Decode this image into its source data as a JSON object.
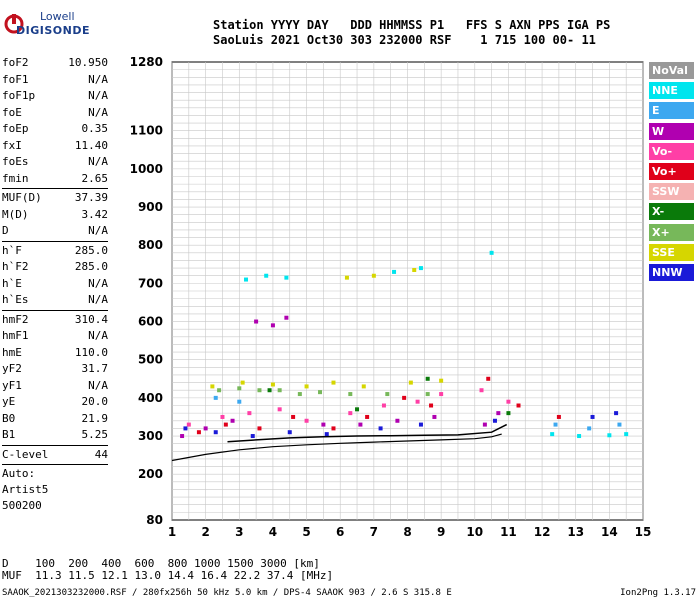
{
  "logo": {
    "line1": "Lowell",
    "line2": "DIGISONDE"
  },
  "header": {
    "line1": "Station YYYY DAY   DDD HHMMSS P1   FFS S AXN PPS IGA PS",
    "line2": "SaoLuis 2021 Oct30 303 232000 RSF    1 715 100 00- 11"
  },
  "params": [
    {
      "k": "foF2",
      "v": "10.950"
    },
    {
      "k": "foF1",
      "v": "N/A"
    },
    {
      "k": "foF1p",
      "v": "N/A"
    },
    {
      "k": "foE",
      "v": "N/A"
    },
    {
      "k": "foEp",
      "v": "0.35"
    },
    {
      "k": "fxI",
      "v": "11.40"
    },
    {
      "k": "foEs",
      "v": "N/A"
    },
    {
      "k": "fmin",
      "v": "2.65"
    },
    {
      "k": "MUF(D)",
      "v": "37.39"
    },
    {
      "k": "M(D)",
      "v": "3.42"
    },
    {
      "k": "D",
      "v": "N/A"
    },
    {
      "k": "h`F",
      "v": "285.0"
    },
    {
      "k": "h`F2",
      "v": "285.0"
    },
    {
      "k": "h`E",
      "v": "N/A"
    },
    {
      "k": "h`Es",
      "v": "N/A"
    },
    {
      "k": "hmF2",
      "v": "310.4"
    },
    {
      "k": "hmF1",
      "v": "N/A"
    },
    {
      "k": "hmE",
      "v": "110.0"
    },
    {
      "k": "yF2",
      "v": "31.7"
    },
    {
      "k": "yF1",
      "v": "N/A"
    },
    {
      "k": "yE",
      "v": "20.0"
    },
    {
      "k": "B0",
      "v": "21.9"
    },
    {
      "k": "B1",
      "v": "5.25"
    },
    {
      "k": "C-level",
      "v": "44"
    }
  ],
  "auto": [
    "Auto:",
    "Artist5",
    "500200"
  ],
  "legend": [
    {
      "label": "NoVal",
      "color": "#999999"
    },
    {
      "label": "NNE",
      "color": "#00e5ee"
    },
    {
      "label": "E",
      "color": "#3ca8f0"
    },
    {
      "label": "W",
      "color": "#b000b0"
    },
    {
      "label": "Vo-",
      "color": "#ff3fa6"
    },
    {
      "label": "Vo+",
      "color": "#e0001a"
    },
    {
      "label": "SSW",
      "color": "#f5b2b2"
    },
    {
      "label": "X-",
      "color": "#0a7a0a"
    },
    {
      "label": "X+",
      "color": "#77b85a"
    },
    {
      "label": "SSE",
      "color": "#d6d600"
    },
    {
      "label": "NNW",
      "color": "#1a1ad8"
    }
  ],
  "bottom": {
    "line1": "D    100  200  400  600  800 1000 1500 3000 [km]",
    "line2": "MUF  11.3 11.5 12.1 13.0 14.4 16.4 22.2 37.4 [MHz]"
  },
  "footer_left": "SAAOK_2021303232000.RSF / 280fx256h 50 kHz 5.0 km / DPS-4 SAAOK 903 / 2.6 S 315.8 E",
  "footer_right": "Ion2Png 1.3.17",
  "chart_data": {
    "type": "scatter",
    "xlim": [
      1,
      15
    ],
    "ylim": [
      80,
      1280
    ],
    "x_ticks": [
      "1",
      "2",
      "3",
      "4",
      "5",
      "6",
      "7",
      "8",
      "9",
      "10",
      "11",
      "12",
      "13",
      "14",
      "15"
    ],
    "y_ticks": [
      "80",
      "200",
      "300",
      "400",
      "500",
      "600",
      "700",
      "800",
      "900",
      "1000",
      "1100",
      "1280"
    ],
    "grid": true,
    "profile_curve": {
      "x": [
        1.0,
        2.0,
        3.0,
        4.0,
        5.0,
        6.0,
        7.0,
        8.0,
        9.0,
        10.0,
        10.5,
        10.8
      ],
      "y": [
        236,
        252,
        264,
        272,
        277,
        281,
        284,
        287,
        290,
        293,
        298,
        305
      ]
    },
    "trace_curve": {
      "x": [
        2.65,
        3.5,
        4.5,
        5.5,
        6.5,
        7.5,
        8.5,
        9.5,
        10.5,
        10.95
      ],
      "y": [
        285,
        290,
        295,
        298,
        300,
        301,
        302,
        303,
        310,
        330
      ]
    },
    "series": [
      {
        "code": "NNE",
        "values": [
          [
            3.2,
            710
          ],
          [
            3.8,
            720
          ],
          [
            4.4,
            715
          ],
          [
            7.6,
            730
          ],
          [
            8.4,
            740
          ],
          [
            10.5,
            780
          ],
          [
            12.3,
            305
          ],
          [
            13.1,
            300
          ],
          [
            14.0,
            302
          ],
          [
            14.5,
            305
          ]
        ]
      },
      {
        "code": "W",
        "values": [
          [
            1.3,
            300
          ],
          [
            2.0,
            320
          ],
          [
            2.8,
            340
          ],
          [
            3.5,
            600
          ],
          [
            4.0,
            590
          ],
          [
            4.4,
            610
          ],
          [
            5.5,
            330
          ],
          [
            6.6,
            330
          ],
          [
            7.7,
            340
          ],
          [
            8.8,
            350
          ],
          [
            10.3,
            330
          ],
          [
            10.7,
            360
          ]
        ]
      },
      {
        "code": "Vo-",
        "values": [
          [
            1.5,
            330
          ],
          [
            2.5,
            350
          ],
          [
            3.3,
            360
          ],
          [
            4.2,
            370
          ],
          [
            5.0,
            340
          ],
          [
            6.3,
            360
          ],
          [
            7.3,
            380
          ],
          [
            8.3,
            390
          ],
          [
            9.0,
            410
          ],
          [
            10.2,
            420
          ],
          [
            11.0,
            390
          ]
        ]
      },
      {
        "code": "Vo+",
        "values": [
          [
            1.8,
            310
          ],
          [
            2.6,
            330
          ],
          [
            3.6,
            320
          ],
          [
            4.6,
            350
          ],
          [
            5.8,
            320
          ],
          [
            6.8,
            350
          ],
          [
            7.9,
            400
          ],
          [
            8.7,
            380
          ],
          [
            10.4,
            450
          ],
          [
            11.3,
            380
          ],
          [
            12.5,
            350
          ]
        ]
      },
      {
        "code": "X+",
        "values": [
          [
            2.4,
            420
          ],
          [
            3.0,
            425
          ],
          [
            3.6,
            420
          ],
          [
            4.2,
            420
          ],
          [
            4.8,
            410
          ],
          [
            5.4,
            415
          ],
          [
            6.3,
            410
          ],
          [
            7.4,
            410
          ],
          [
            8.6,
            410
          ]
        ]
      },
      {
        "code": "SSE",
        "values": [
          [
            2.2,
            430
          ],
          [
            3.1,
            440
          ],
          [
            4.0,
            435
          ],
          [
            5.0,
            430
          ],
          [
            5.8,
            440
          ],
          [
            6.7,
            430
          ],
          [
            8.1,
            440
          ],
          [
            9.0,
            445
          ],
          [
            6.2,
            715
          ],
          [
            7.0,
            720
          ],
          [
            8.2,
            735
          ]
        ]
      },
      {
        "code": "NNW",
        "values": [
          [
            1.4,
            320
          ],
          [
            2.3,
            310
          ],
          [
            3.4,
            300
          ],
          [
            4.5,
            310
          ],
          [
            5.6,
            305
          ],
          [
            7.2,
            320
          ],
          [
            8.4,
            330
          ],
          [
            10.6,
            340
          ],
          [
            13.5,
            350
          ],
          [
            14.2,
            360
          ]
        ]
      },
      {
        "code": "X-",
        "values": [
          [
            3.9,
            420
          ],
          [
            6.5,
            370
          ],
          [
            8.6,
            450
          ],
          [
            11.0,
            360
          ]
        ]
      },
      {
        "code": "E",
        "values": [
          [
            2.3,
            400
          ],
          [
            3.0,
            390
          ],
          [
            12.4,
            330
          ],
          [
            13.4,
            320
          ],
          [
            14.3,
            330
          ]
        ]
      }
    ]
  }
}
